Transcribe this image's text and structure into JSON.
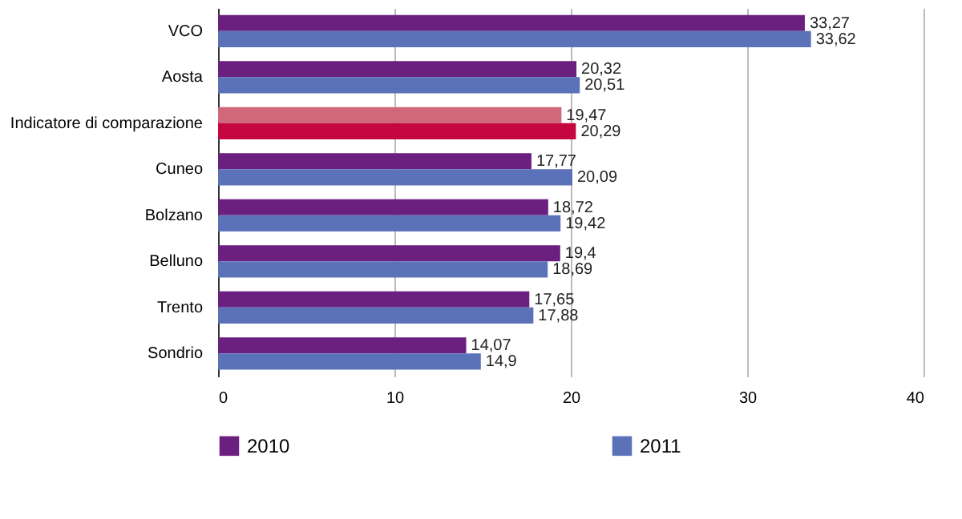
{
  "chart_data": {
    "type": "bar",
    "orientation": "horizontal",
    "categories": [
      "VCO",
      "Aosta",
      "Indicatore di comparazione",
      "Cuneo",
      "Bolzano",
      "Belluno",
      "Trento",
      "Sondrio"
    ],
    "series": [
      {
        "name": "2010",
        "color": "#6b1f7f",
        "colors": [
          "#6b1f7f",
          "#6b1f7f",
          "#d0677a",
          "#6b1f7f",
          "#6b1f7f",
          "#6b1f7f",
          "#6b1f7f",
          "#6b1f7f"
        ],
        "values": [
          33.27,
          20.32,
          19.47,
          17.77,
          18.72,
          19.4,
          17.65,
          14.07
        ],
        "value_labels": [
          "33,27",
          "20,32",
          "19,47",
          "17,77",
          "18,72",
          "19,4",
          "17,65",
          "14,07"
        ]
      },
      {
        "name": "2011",
        "color": "#5b72b8",
        "colors": [
          "#5b72b8",
          "#5b72b8",
          "#c4073f",
          "#5b72b8",
          "#5b72b8",
          "#5b72b8",
          "#5b72b8",
          "#5b72b8"
        ],
        "values": [
          33.62,
          20.51,
          20.29,
          20.09,
          19.42,
          18.69,
          17.88,
          14.9
        ],
        "value_labels": [
          "33,62",
          "20,51",
          "20,29",
          "20,09",
          "19,42",
          "18,69",
          "17,88",
          "14,9"
        ]
      }
    ],
    "xlim": [
      0,
      40
    ],
    "xticks": [
      0,
      10,
      20,
      30,
      40
    ],
    "grid": "x",
    "legend": "bottom"
  }
}
